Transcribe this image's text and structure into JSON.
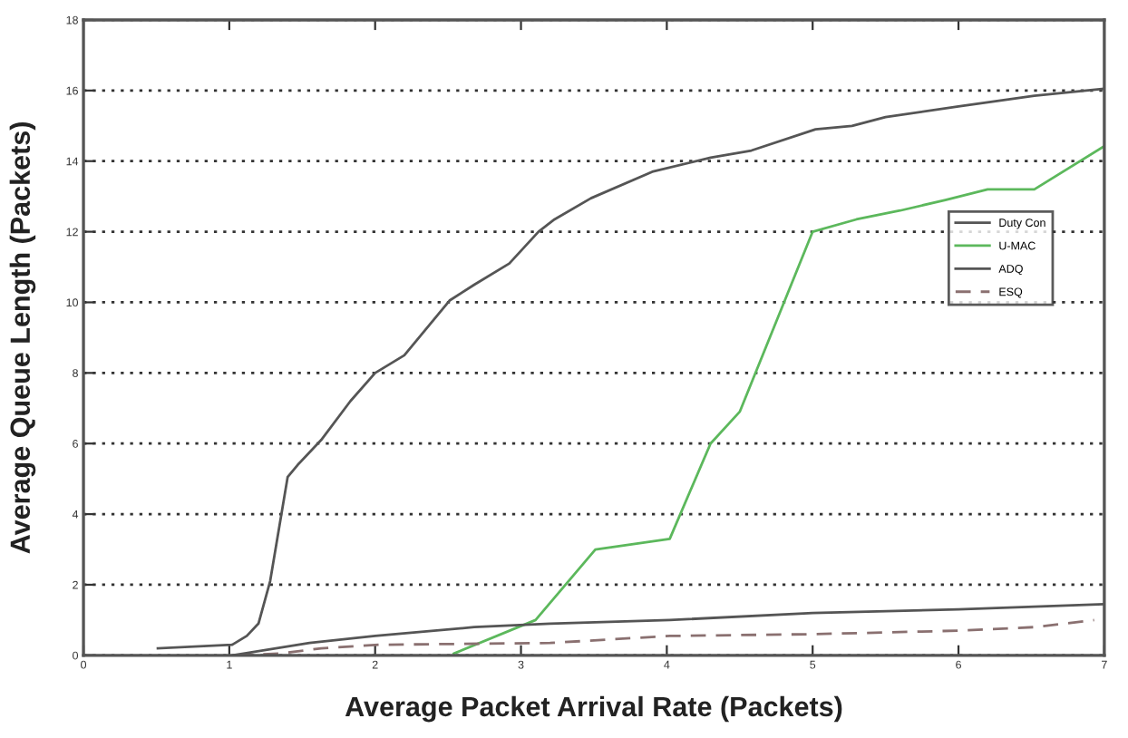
{
  "chart_data": {
    "type": "line",
    "xlabel": "Average Packet Arrival Rate (Packets)",
    "ylabel": "Average Queue Length (Packets)",
    "xlim": [
      0,
      7
    ],
    "xticks": [
      0,
      1,
      2,
      3,
      4,
      5,
      6,
      7
    ],
    "ylim": [
      0,
      18
    ],
    "yticks": [
      0,
      2,
      4,
      6,
      8,
      10,
      12,
      14,
      16,
      18
    ],
    "grid": "y",
    "legend": "center right",
    "marker": "none",
    "series": [
      {
        "name": "Duty Con",
        "color": "#555555",
        "line_style": "solid",
        "x": [
          0.51,
          1.02,
          1.12,
          1.2,
          1.28,
          1.4,
          1.47,
          1.63,
          1.83,
          2.0,
          2.2,
          2.51,
          2.68,
          2.92,
          3.12,
          3.23,
          3.48,
          3.9,
          4.3,
          4.58,
          5.02,
          5.27,
          5.5,
          6.0,
          6.52,
          6.99
        ],
        "values": [
          0.2,
          0.3,
          0.55,
          0.9,
          2.1,
          5.05,
          5.4,
          6.1,
          7.2,
          8.0,
          8.5,
          10.05,
          10.5,
          11.1,
          12.0,
          12.35,
          12.95,
          13.7,
          14.1,
          14.3,
          14.9,
          15.0,
          15.25,
          15.55,
          15.85,
          16.05
        ]
      },
      {
        "name": "U-MAC",
        "color": "#5cb85c",
        "line_style": "solid",
        "x": [
          2.54,
          3.1,
          3.51,
          4.02,
          4.3,
          4.5,
          5.0,
          5.3,
          5.6,
          5.91,
          6.2,
          6.52,
          6.99
        ],
        "values": [
          0.05,
          1.0,
          3.0,
          3.3,
          6.0,
          6.9,
          12.0,
          12.35,
          12.6,
          12.9,
          13.2,
          13.2,
          14.4
        ]
      },
      {
        "name": "ADQ",
        "color": "#555555",
        "line_style": "solid",
        "x": [
          1.02,
          1.55,
          2.0,
          2.68,
          3.2,
          4.02,
          5.0,
          6.0,
          6.99
        ],
        "values": [
          0.0,
          0.35,
          0.55,
          0.8,
          0.9,
          1.0,
          1.2,
          1.3,
          1.45
        ]
      },
      {
        "name": "ESQ",
        "color": "#8a7070",
        "line_style": "dashed",
        "x": [
          1.06,
          1.35,
          1.63,
          2.03,
          3.2,
          4.02,
          5.0,
          6.0,
          6.52,
          6.93
        ],
        "values": [
          0.0,
          0.05,
          0.2,
          0.3,
          0.35,
          0.55,
          0.6,
          0.7,
          0.8,
          1.0
        ]
      }
    ]
  }
}
